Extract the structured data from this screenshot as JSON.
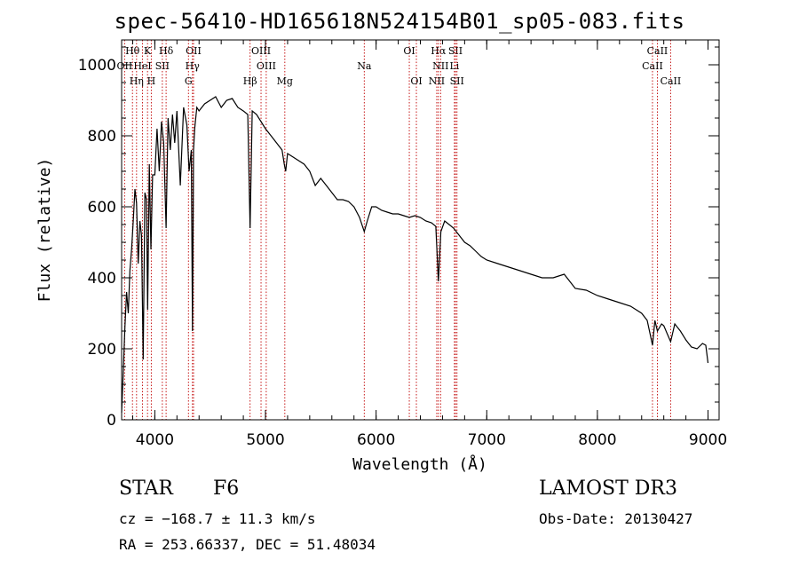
{
  "title": "spec-56410-HD165618N524154B01_sp05-083.fits",
  "info": {
    "object_class": "STAR",
    "subclass": "F6",
    "survey": "LAMOST DR3",
    "cz": "cz = −168.7 ± 11.3 km/s",
    "obs_date": "Obs-Date: 20130427",
    "coords": "RA = 253.66337, DEC =  51.48034"
  },
  "chart_data": {
    "type": "line",
    "title": "spec-56410-HD165618N524154B01_sp05-083.fits",
    "xlabel": "Wavelength (Å)",
    "ylabel": "Flux (relative)",
    "xlim": [
      3700,
      9100
    ],
    "ylim": [
      0,
      1070
    ],
    "x_ticks": [
      4000,
      5000,
      6000,
      7000,
      8000,
      9000
    ],
    "x_tick_labels": [
      "4000",
      "5000",
      "6000",
      "7000",
      "8000",
      "9000"
    ],
    "y_ticks": [
      0,
      200,
      400,
      600,
      800,
      1000
    ],
    "y_tick_labels": [
      "0",
      "200",
      "400",
      "600",
      "800",
      "1000"
    ],
    "grid": false,
    "series": [
      {
        "x": [
          3700,
          3715,
          3730,
          3745,
          3760,
          3775,
          3790,
          3805,
          3820,
          3835,
          3850,
          3865,
          3880,
          3895,
          3910,
          3925,
          3935,
          3950,
          3965,
          3980,
          4000,
          4020,
          4040,
          4060,
          4080,
          4102,
          4120,
          4140,
          4160,
          4180,
          4200,
          4230,
          4260,
          4290,
          4310,
          4330,
          4340,
          4350,
          4360,
          4380,
          4400,
          4450,
          4500,
          4550,
          4600,
          4650,
          4700,
          4750,
          4800,
          4840,
          4861,
          4880,
          4920,
          4960,
          5000,
          5050,
          5100,
          5150,
          5170,
          5183,
          5200,
          5250,
          5300,
          5350,
          5400,
          5450,
          5500,
          5550,
          5600,
          5650,
          5700,
          5750,
          5800,
          5850,
          5893,
          5920,
          5960,
          6000,
          6050,
          6100,
          6150,
          6200,
          6250,
          6300,
          6350,
          6400,
          6450,
          6500,
          6540,
          6563,
          6585,
          6620,
          6660,
          6700,
          6750,
          6800,
          6850,
          6900,
          6950,
          7000,
          7100,
          7200,
          7300,
          7400,
          7500,
          7600,
          7700,
          7800,
          7900,
          8000,
          8100,
          8200,
          8300,
          8400,
          8450,
          8498,
          8520,
          8542,
          8580,
          8600,
          8662,
          8700,
          8750,
          8800,
          8850,
          8900,
          8950,
          8980,
          9000
        ],
        "y": [
          20,
          140,
          260,
          360,
          300,
          420,
          480,
          560,
          650,
          610,
          440,
          560,
          520,
          170,
          640,
          620,
          310,
          720,
          480,
          690,
          690,
          820,
          700,
          840,
          780,
          540,
          850,
          760,
          860,
          780,
          870,
          660,
          880,
          830,
          700,
          760,
          250,
          760,
          820,
          880,
          870,
          890,
          900,
          910,
          880,
          900,
          905,
          880,
          870,
          860,
          540,
          870,
          860,
          840,
          820,
          800,
          780,
          760,
          720,
          700,
          750,
          740,
          730,
          720,
          700,
          660,
          680,
          660,
          640,
          620,
          620,
          615,
          600,
          570,
          530,
          560,
          600,
          600,
          590,
          585,
          580,
          580,
          575,
          570,
          575,
          570,
          560,
          555,
          545,
          390,
          530,
          560,
          550,
          540,
          520,
          500,
          490,
          475,
          460,
          450,
          440,
          430,
          420,
          410,
          400,
          400,
          410,
          370,
          365,
          350,
          340,
          330,
          320,
          300,
          280,
          210,
          280,
          250,
          270,
          265,
          220,
          270,
          250,
          225,
          205,
          200,
          215,
          210,
          160
        ]
      }
    ],
    "line_markers": [
      {
        "label": "Hθ",
        "x": 3798,
        "row": 1
      },
      {
        "label": "K",
        "x": 3934,
        "row": 1
      },
      {
        "label": "Hδ",
        "x": 4102,
        "row": 1
      },
      {
        "label": "OII",
        "x": 4350,
        "row": 1
      },
      {
        "label": "OIII",
        "x": 4960,
        "row": 1
      },
      {
        "label": "OI",
        "x": 6300,
        "row": 1
      },
      {
        "label": "Hα",
        "x": 6563,
        "row": 1
      },
      {
        "label": "SII",
        "x": 6717,
        "row": 1
      },
      {
        "label": "CaII",
        "x": 8542,
        "row": 1
      },
      {
        "label": "OII",
        "x": 3727,
        "row": 2
      },
      {
        "label": "HeI",
        "x": 3889,
        "row": 2
      },
      {
        "label": "SII",
        "x": 4068,
        "row": 2
      },
      {
        "label": "Hγ",
        "x": 4340,
        "row": 2
      },
      {
        "label": "OIII",
        "x": 5007,
        "row": 2
      },
      {
        "label": "Na",
        "x": 5893,
        "row": 2
      },
      {
        "label": "NII",
        "x": 6583,
        "row": 2
      },
      {
        "label": "Li",
        "x": 6708,
        "row": 2
      },
      {
        "label": "CaII",
        "x": 8498,
        "row": 2
      },
      {
        "label": "Hη",
        "x": 3835,
        "row": 3
      },
      {
        "label": "H",
        "x": 3968,
        "row": 3
      },
      {
        "label": "G",
        "x": 4304,
        "row": 3
      },
      {
        "label": "Hβ",
        "x": 4861,
        "row": 3
      },
      {
        "label": "Mg",
        "x": 5175,
        "row": 3
      },
      {
        "label": "OI",
        "x": 6364,
        "row": 3
      },
      {
        "label": "NII",
        "x": 6548,
        "row": 3
      },
      {
        "label": "SII",
        "x": 6731,
        "row": 3
      },
      {
        "label": "CaII",
        "x": 8662,
        "row": 3
      }
    ]
  }
}
